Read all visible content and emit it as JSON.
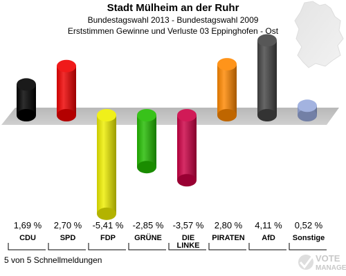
{
  "header": {
    "title": "Stadt Mülheim an der Ruhr",
    "subtitle1": "Bundestagswahl 2013 - Bundestagswahl 2009",
    "subtitle2": "Erststimmen Gewinne und Verluste 03 Eppinghofen - Ost"
  },
  "footnote": "5 von 5 Schnellmeldungen",
  "logo": {
    "text": "VOTE",
    "subtext": "MANAGER"
  },
  "chart_data": {
    "type": "bar",
    "title": "Erststimmen Gewinne und Verluste 03 Eppinghofen - Ost",
    "categories": [
      "CDU",
      "SPD",
      "FDP",
      "GRÜNE",
      "DIE LINKE",
      "PIRATEN",
      "AfD",
      "Sonstige"
    ],
    "values": [
      1.69,
      2.7,
      -5.41,
      -2.85,
      -3.57,
      2.8,
      4.11,
      0.52
    ],
    "value_labels": [
      "1,69 %",
      "2,70 %",
      "-5,41 %",
      "-2,85 %",
      "-3,57 %",
      "2,80 %",
      "4,11 %",
      "0,52 %"
    ],
    "category_labels": [
      [
        "CDU"
      ],
      [
        "SPD"
      ],
      [
        "FDP"
      ],
      [
        "GRÜNE"
      ],
      [
        "DIE",
        "LINKE"
      ],
      [
        "PIRATEN"
      ],
      [
        "AfD"
      ],
      [
        "Sonstige"
      ]
    ],
    "colors": [
      "#000000",
      "#ee0000",
      "#eeee00",
      "#22bb00",
      "#cc0044",
      "#ff8800",
      "#444444",
      "#99aadd"
    ],
    "ylim": [
      -5.41,
      4.11
    ],
    "grid": false,
    "legend": "none"
  }
}
